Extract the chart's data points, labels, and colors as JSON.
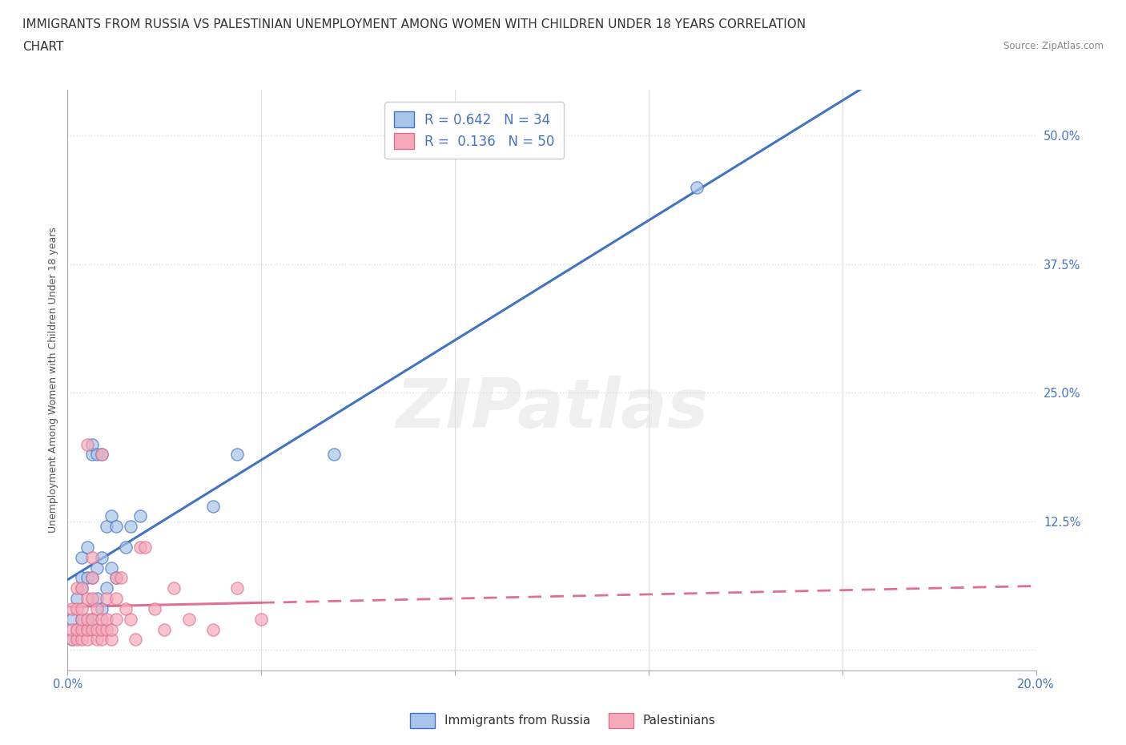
{
  "title_line1": "IMMIGRANTS FROM RUSSIA VS PALESTINIAN UNEMPLOYMENT AMONG WOMEN WITH CHILDREN UNDER 18 YEARS CORRELATION",
  "title_line2": "CHART",
  "source": "Source: ZipAtlas.com",
  "ylabel": "Unemployment Among Women with Children Under 18 years",
  "xlim": [
    0.0,
    0.2
  ],
  "ylim": [
    -0.02,
    0.545
  ],
  "xticks": [
    0.0,
    0.04,
    0.08,
    0.12,
    0.16,
    0.2
  ],
  "xticklabels": [
    "0.0%",
    "",
    "",
    "",
    "",
    "20.0%"
  ],
  "yticks": [
    0.0,
    0.125,
    0.25,
    0.375,
    0.5
  ],
  "yticklabels": [
    "",
    "12.5%",
    "25.0%",
    "37.5%",
    "50.0%"
  ],
  "r_blue": 0.642,
  "n_blue": 34,
  "r_pink": 0.136,
  "n_pink": 50,
  "blue_scatter_color": "#A8C4E8",
  "pink_scatter_color": "#F4AABB",
  "blue_line_color": "#4472C4",
  "pink_line_color": "#E07090",
  "watermark": "ZIPatlas",
  "legend_label_blue": "Immigrants from Russia",
  "legend_label_pink": "Palestinians",
  "blue_scatter_x": [
    0.001,
    0.001,
    0.002,
    0.002,
    0.003,
    0.003,
    0.003,
    0.003,
    0.004,
    0.004,
    0.004,
    0.005,
    0.005,
    0.005,
    0.005,
    0.006,
    0.006,
    0.006,
    0.007,
    0.007,
    0.007,
    0.008,
    0.008,
    0.009,
    0.009,
    0.01,
    0.01,
    0.012,
    0.013,
    0.015,
    0.03,
    0.035,
    0.055,
    0.13
  ],
  "blue_scatter_y": [
    0.01,
    0.03,
    0.02,
    0.05,
    0.03,
    0.06,
    0.07,
    0.09,
    0.02,
    0.07,
    0.1,
    0.03,
    0.07,
    0.19,
    0.2,
    0.05,
    0.08,
    0.19,
    0.04,
    0.09,
    0.19,
    0.06,
    0.12,
    0.08,
    0.13,
    0.07,
    0.12,
    0.1,
    0.12,
    0.13,
    0.14,
    0.19,
    0.19,
    0.45
  ],
  "pink_scatter_x": [
    0.001,
    0.001,
    0.001,
    0.002,
    0.002,
    0.002,
    0.002,
    0.003,
    0.003,
    0.003,
    0.003,
    0.003,
    0.004,
    0.004,
    0.004,
    0.004,
    0.004,
    0.005,
    0.005,
    0.005,
    0.005,
    0.005,
    0.006,
    0.006,
    0.006,
    0.007,
    0.007,
    0.007,
    0.007,
    0.008,
    0.008,
    0.008,
    0.009,
    0.009,
    0.01,
    0.01,
    0.01,
    0.011,
    0.012,
    0.013,
    0.014,
    0.015,
    0.016,
    0.018,
    0.02,
    0.022,
    0.025,
    0.03,
    0.035,
    0.04
  ],
  "pink_scatter_y": [
    0.01,
    0.02,
    0.04,
    0.01,
    0.02,
    0.04,
    0.06,
    0.01,
    0.02,
    0.03,
    0.04,
    0.06,
    0.01,
    0.02,
    0.03,
    0.05,
    0.2,
    0.02,
    0.03,
    0.05,
    0.07,
    0.09,
    0.01,
    0.02,
    0.04,
    0.01,
    0.02,
    0.03,
    0.19,
    0.02,
    0.03,
    0.05,
    0.01,
    0.02,
    0.03,
    0.05,
    0.07,
    0.07,
    0.04,
    0.03,
    0.01,
    0.1,
    0.1,
    0.04,
    0.02,
    0.06,
    0.03,
    0.02,
    0.06,
    0.03
  ],
  "background_color": "#FFFFFF",
  "grid_color": "#DDDDDD",
  "title_fontsize": 11,
  "axis_label_fontsize": 9,
  "tick_fontsize": 10.5
}
